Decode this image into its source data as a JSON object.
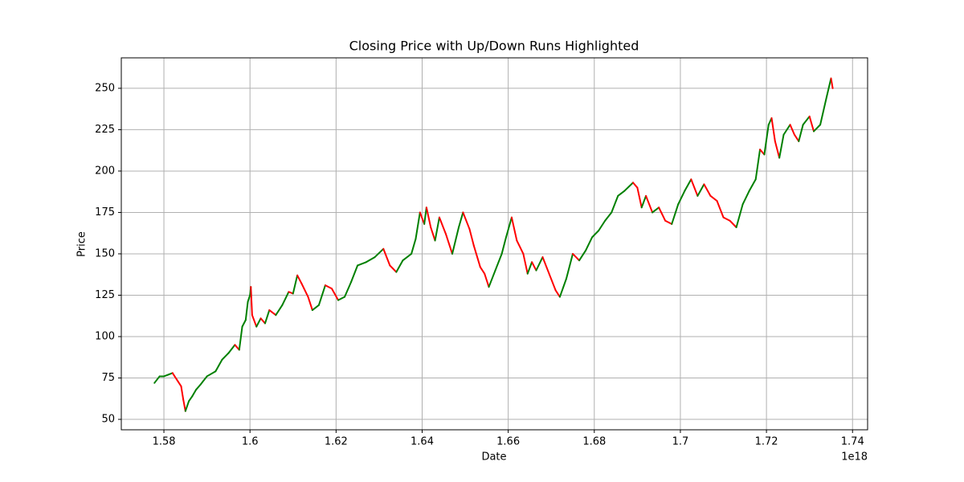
{
  "chart_data": {
    "type": "line",
    "title": "Closing Price with Up/Down Runs Highlighted",
    "x_label": "Date",
    "y_label": "Price",
    "x_offset_label": "1e18",
    "up_color": "#008000",
    "down_color": "#ff0000",
    "grid": true,
    "xlim": [
      1.5701,
      1.7435
    ],
    "ylim": [
      43.7,
      268.4
    ],
    "xticks": [
      1.58,
      1.6,
      1.62,
      1.64,
      1.66,
      1.68,
      1.7,
      1.72,
      1.74
    ],
    "yticks": [
      50,
      75,
      100,
      125,
      150,
      175,
      200,
      225,
      250
    ],
    "x": [
      1.5778,
      1.579,
      1.58,
      1.581,
      1.582,
      1.583,
      1.584,
      1.5845,
      1.585,
      1.5858,
      1.5866,
      1.5875,
      1.5885,
      1.59,
      1.592,
      1.5935,
      1.595,
      1.5965,
      1.5975,
      1.5982,
      1.599,
      1.5995,
      1.6,
      1.6002,
      1.6005,
      1.6015,
      1.6025,
      1.6035,
      1.6045,
      1.606,
      1.6075,
      1.609,
      1.61,
      1.611,
      1.612,
      1.6135,
      1.6145,
      1.616,
      1.6175,
      1.619,
      1.6205,
      1.622,
      1.6235,
      1.625,
      1.627,
      1.629,
      1.631,
      1.6325,
      1.634,
      1.6355,
      1.6375,
      1.6385,
      1.6395,
      1.6405,
      1.641,
      1.642,
      1.643,
      1.644,
      1.6455,
      1.647,
      1.6485,
      1.6495,
      1.651,
      1.652,
      1.6535,
      1.6545,
      1.6555,
      1.657,
      1.6585,
      1.6595,
      1.6608,
      1.662,
      1.6635,
      1.6645,
      1.6655,
      1.6665,
      1.668,
      1.6695,
      1.671,
      1.672,
      1.6735,
      1.675,
      1.6765,
      1.678,
      1.6795,
      1.681,
      1.6825,
      1.684,
      1.6855,
      1.687,
      1.689,
      1.69,
      1.691,
      1.692,
      1.6935,
      1.695,
      1.6965,
      1.698,
      1.6995,
      1.701,
      1.7025,
      1.704,
      1.7055,
      1.707,
      1.7085,
      1.71,
      1.7115,
      1.713,
      1.7145,
      1.716,
      1.7175,
      1.7185,
      1.7195,
      1.7205,
      1.7212,
      1.722,
      1.723,
      1.724,
      1.7255,
      1.7265,
      1.7275,
      1.7285,
      1.73,
      1.731,
      1.7325,
      1.734,
      1.735,
      1.7354
    ],
    "values": [
      72,
      76,
      76,
      77,
      78,
      74,
      70,
      62,
      55,
      61,
      64,
      68,
      71,
      76,
      79,
      86,
      90,
      95,
      92,
      106,
      110,
      121,
      125,
      130,
      113,
      106,
      111,
      108,
      116,
      113,
      119,
      127,
      126,
      137,
      132,
      124,
      116,
      119,
      131,
      129,
      122,
      124,
      133,
      143,
      145,
      148,
      153,
      143,
      139,
      146,
      150,
      159,
      175,
      168,
      178,
      166,
      158,
      172,
      162,
      150,
      166,
      175,
      165,
      155,
      142,
      138,
      130,
      140,
      150,
      160,
      172,
      158,
      150,
      138,
      145,
      140,
      148,
      138,
      128,
      124,
      135,
      150,
      146,
      152,
      160,
      164,
      170,
      175,
      185,
      188,
      193,
      190,
      178,
      185,
      175,
      178,
      170,
      168,
      180,
      188,
      195,
      185,
      192,
      185,
      182,
      172,
      170,
      166,
      180,
      188,
      195,
      213,
      210,
      228,
      232,
      218,
      208,
      222,
      228,
      222,
      218,
      228,
      233,
      224,
      228,
      245,
      256,
      250
    ]
  }
}
